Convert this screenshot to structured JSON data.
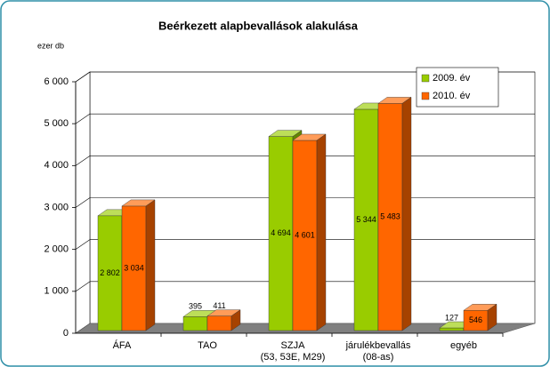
{
  "chart_data": {
    "type": "bar3d",
    "title": "Beérkezett alapbevallások alakulása",
    "y_label": "ezer db",
    "categories": [
      "ÁFA",
      "TAO",
      "SZJA\n(53, 53E, M29)",
      "járulékbevallás\n(08-as)",
      "egyéb"
    ],
    "series": [
      {
        "name": "2009. év",
        "color": "#99cc00",
        "values": [
          2802,
          395,
          4694,
          5344,
          127
        ],
        "value_labels": [
          "2 802",
          "395",
          "4 694",
          "5 344",
          "127"
        ]
      },
      {
        "name": "2010. év",
        "color": "#ff6600",
        "values": [
          3034,
          411,
          4601,
          5483,
          546
        ],
        "value_labels": [
          "3 034",
          "411",
          "4 601",
          "5 483",
          "546"
        ]
      }
    ],
    "ylim": [
      0,
      6000
    ],
    "yticks": [
      0,
      {
        "value": 1000,
        "label": "1 000"
      },
      {
        "value": 2000,
        "label": "2 000"
      },
      {
        "value": 3000,
        "label": "3 000"
      },
      {
        "value": 4000,
        "label": "4 000"
      },
      {
        "value": 5000,
        "label": "5 000"
      },
      {
        "value": 6000,
        "label": "6 000"
      }
    ],
    "grid": true,
    "legend": "top-right"
  }
}
